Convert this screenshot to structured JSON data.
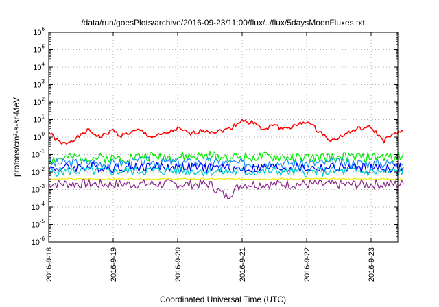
{
  "chart_data": {
    "type": "line",
    "title": "/data/run/goesPlots/archive/2016-09-23/11:00/flux/../flux/5daysMoonFluxes.txt",
    "xlabel": "Coordinated Universal Time (UTC)",
    "ylabel": "protons/cm²-s-sr-MeV",
    "yscale": "log",
    "ylim": [
      1e-06,
      1000000.0
    ],
    "xlim_days": [
      0,
      5.5
    ],
    "grid": true,
    "legend": "none",
    "x_ticks": [
      {
        "label": "2016-9-18",
        "day": 0
      },
      {
        "label": "2016-9-19",
        "day": 1
      },
      {
        "label": "2016-9-20",
        "day": 2
      },
      {
        "label": "2016-9-21",
        "day": 3
      },
      {
        "label": "2016-9-22",
        "day": 4
      },
      {
        "label": "2016-9-23",
        "day": 5
      }
    ],
    "y_ticks": [
      {
        "base": "10",
        "exp": "-6",
        "value": -6
      },
      {
        "base": "10",
        "exp": "-5",
        "value": -5
      },
      {
        "base": "10",
        "exp": "-4",
        "value": -4
      },
      {
        "base": "10",
        "exp": "-3",
        "value": -3
      },
      {
        "base": "10",
        "exp": "-2",
        "value": -2
      },
      {
        "base": "10",
        "exp": "-1",
        "value": -1
      },
      {
        "base": "10",
        "exp": "0",
        "value": 0
      },
      {
        "base": "10",
        "exp": "1",
        "value": 1
      },
      {
        "base": "10",
        "exp": "2",
        "value": 2
      },
      {
        "base": "10",
        "exp": "3",
        "value": 3
      },
      {
        "base": "10",
        "exp": "4",
        "value": 4
      },
      {
        "base": "10",
        "exp": "5",
        "value": 5
      },
      {
        "base": "10",
        "exp": "6",
        "value": 6
      }
    ],
    "series": [
      {
        "color": "#ff0000",
        "x": [
          0,
          0.1,
          0.2,
          0.3,
          0.4,
          0.5,
          0.6,
          0.8,
          1.0,
          1.1,
          1.2,
          1.4,
          1.6,
          1.8,
          2.0,
          2.2,
          2.4,
          2.6,
          2.8,
          2.9,
          3.0,
          3.1,
          3.2,
          3.3,
          3.4,
          3.5,
          3.6,
          3.8,
          4.0,
          4.2,
          4.4,
          4.6,
          4.8,
          5.0,
          5.2,
          5.3,
          5.4,
          5.5
        ],
        "y": [
          2.0,
          0.8,
          0.4,
          0.5,
          0.8,
          1.2,
          2.5,
          1.0,
          2.5,
          1.2,
          1.5,
          2.5,
          1.0,
          1.5,
          3.0,
          1.5,
          2.5,
          2.0,
          3.0,
          5.0,
          10,
          6.0,
          8.0,
          2.5,
          3.0,
          6.0,
          3.0,
          4.0,
          8.0,
          2.0,
          0.6,
          1.5,
          3.0,
          3.5,
          0.6,
          1.2,
          1.5,
          2.5
        ]
      },
      {
        "color": "#00ee00",
        "x": [
          0,
          0.5,
          1.0,
          1.5,
          2.0,
          2.5,
          3.0,
          3.5,
          4.0,
          4.5,
          5.0,
          5.5
        ],
        "y": [
          0.05,
          0.07,
          0.06,
          0.08,
          0.07,
          0.08,
          0.07,
          0.07,
          0.06,
          0.07,
          0.07,
          0.07
        ]
      },
      {
        "color": "#1e90ff",
        "x": [
          0,
          0.5,
          1.0,
          1.5,
          2.0,
          2.5,
          3.0,
          3.5,
          4.0,
          4.5,
          5.0,
          5.5
        ],
        "y": [
          0.03,
          0.035,
          0.03,
          0.04,
          0.035,
          0.035,
          0.03,
          0.035,
          0.03,
          0.035,
          0.03,
          0.035
        ]
      },
      {
        "color": "#0000ff",
        "x": [
          0,
          0.5,
          1.0,
          1.5,
          2.0,
          2.5,
          3.0,
          3.5,
          4.0,
          4.5,
          5.0,
          5.5
        ],
        "y": [
          0.015,
          0.02,
          0.018,
          0.02,
          0.02,
          0.018,
          0.015,
          0.018,
          0.016,
          0.018,
          0.016,
          0.018
        ]
      },
      {
        "color": "#00cccc",
        "x": [
          0,
          0.5,
          1.0,
          1.5,
          2.0,
          2.5,
          3.0,
          3.5,
          4.0,
          4.5,
          5.0,
          5.5
        ],
        "y": [
          0.01,
          0.012,
          0.011,
          0.012,
          0.012,
          0.011,
          0.01,
          0.011,
          0.01,
          0.011,
          0.01,
          0.011
        ]
      },
      {
        "color": "#eeee00",
        "x": [
          0,
          0.5,
          1.0,
          1.5,
          2.0,
          2.5,
          3.0,
          3.5,
          4.0,
          4.5,
          5.0,
          5.5
        ],
        "y": [
          0.004,
          0.004,
          0.004,
          0.004,
          0.004,
          0.004,
          0.004,
          0.004,
          0.004,
          0.004,
          0.004,
          0.004
        ]
      },
      {
        "color": "#8b2a8b",
        "x": [
          0,
          0.5,
          1.0,
          1.5,
          2.0,
          2.5,
          2.75,
          3.0,
          3.5,
          4.0,
          4.5,
          5.0,
          5.5
        ],
        "y": [
          0.0022,
          0.0021,
          0.002,
          0.0021,
          0.002,
          0.002,
          0.0004,
          0.002,
          0.002,
          0.002,
          0.0019,
          0.002,
          0.002
        ]
      }
    ]
  }
}
